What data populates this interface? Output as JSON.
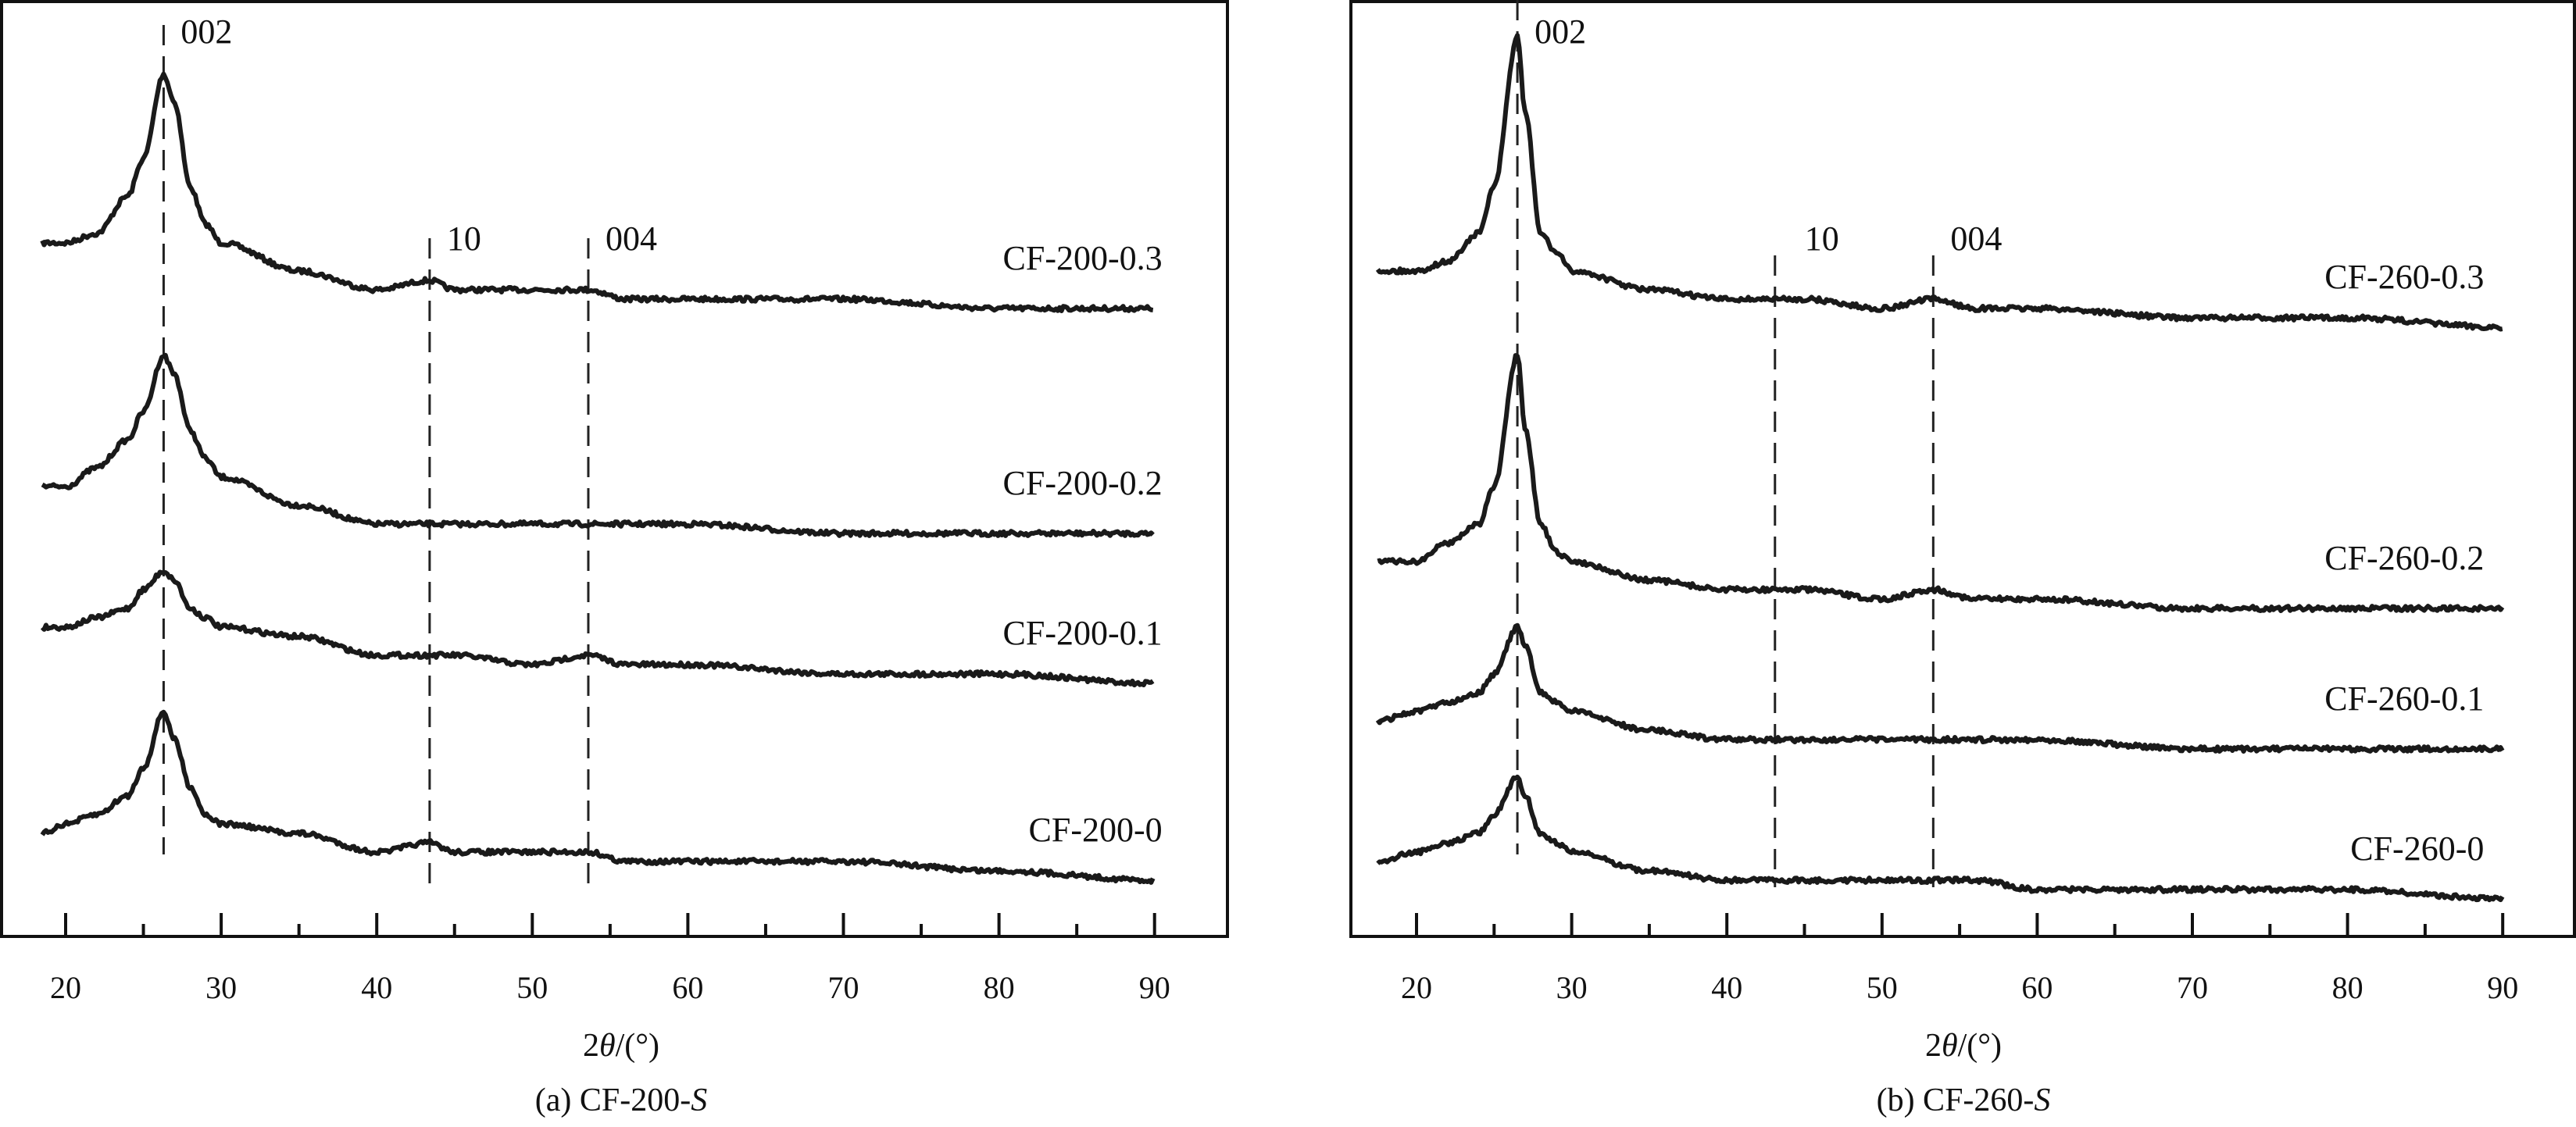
{
  "chart_data": [
    {
      "type": "line",
      "panel": "a",
      "caption_prefix": "(a) CF-200-",
      "caption_italic": "S",
      "xlabel_pre": "2",
      "xlabel_theta": "θ",
      "xlabel_post": "/(°)",
      "ylabel": "",
      "xlim": [
        18,
        90
      ],
      "ylim": [
        0,
        100
      ],
      "y_units": "a.u. (offset stacked)",
      "xticks": [
        "20",
        "30",
        "40",
        "50",
        "60",
        "70",
        "80",
        "90"
      ],
      "xtick_values": [
        20,
        30,
        40,
        50,
        60,
        70,
        80,
        90
      ],
      "annotations": [
        {
          "label": "002",
          "x": 26.3
        },
        {
          "label": "10",
          "x": 43.4
        },
        {
          "label": "004",
          "x": 53.6
        }
      ],
      "x": [
        18.5,
        20,
        22,
        24,
        25,
        26.3,
        27,
        28,
        29,
        30,
        35,
        40,
        43.4,
        45,
        50,
        53.6,
        56,
        60,
        70,
        80,
        90
      ],
      "series": [
        {
          "name": "CF-200-0.3",
          "values": [
            74,
            74,
            75,
            79,
            83,
            92,
            89,
            80,
            76,
            74,
            71,
            69,
            70,
            69,
            69,
            69,
            68,
            68,
            68,
            67,
            67
          ]
        },
        {
          "name": "CF-200-0.2",
          "values": [
            48,
            48,
            50,
            53,
            56,
            62,
            60,
            54,
            51,
            49,
            46,
            44,
            44,
            44,
            44,
            44,
            44,
            44,
            43,
            43,
            43
          ]
        },
        {
          "name": "CF-200-0.1",
          "values": [
            33,
            33,
            34,
            35,
            37,
            39,
            38,
            35,
            34,
            33,
            32,
            30,
            30,
            30,
            29,
            30,
            29,
            29,
            28,
            28,
            27
          ]
        },
        {
          "name": "CF-200-0",
          "values": [
            11,
            12,
            13,
            15,
            18,
            24,
            21,
            16,
            13,
            12,
            11,
            9,
            10,
            9,
            9,
            9,
            8,
            8,
            8,
            7,
            6
          ]
        }
      ],
      "grid": false
    },
    {
      "type": "line",
      "panel": "b",
      "caption_prefix": "(b) CF-260-",
      "caption_italic": "S",
      "xlabel_pre": "2",
      "xlabel_theta": "θ",
      "xlabel_post": "/(°)",
      "ylabel": "",
      "xlim": [
        17,
        90
      ],
      "ylim": [
        0,
        100
      ],
      "y_units": "a.u. (offset stacked)",
      "xticks": [
        "20",
        "30",
        "40",
        "50",
        "60",
        "70",
        "80",
        "90"
      ],
      "xtick_values": [
        20,
        30,
        40,
        50,
        60,
        70,
        80,
        90
      ],
      "annotations": [
        {
          "label": "002",
          "x": 26.5
        },
        {
          "label": "10",
          "x": 43.1
        },
        {
          "label": "004",
          "x": 53.3
        }
      ],
      "x": [
        17.5,
        20,
        22,
        24,
        25,
        26.5,
        27,
        28,
        29,
        30,
        35,
        40,
        43.1,
        45,
        50,
        53.3,
        56,
        60,
        70,
        80,
        90
      ],
      "series": [
        {
          "name": "CF-260-0.3",
          "values": [
            71,
            71,
            72,
            75,
            80,
            96,
            88,
            75,
            73,
            71,
            69,
            68,
            68,
            68,
            67,
            68,
            67,
            67,
            66,
            66,
            65
          ]
        },
        {
          "name": "CF-260-0.2",
          "values": [
            40,
            40,
            42,
            44,
            48,
            62,
            54,
            44,
            41,
            40,
            38,
            37,
            37,
            37,
            36,
            37,
            36,
            36,
            35,
            35,
            35
          ]
        },
        {
          "name": "CF-260-0.1",
          "values": [
            23,
            24,
            25,
            26,
            28,
            33,
            31,
            26,
            25,
            24,
            22,
            21,
            21,
            21,
            21,
            21,
            21,
            21,
            20,
            20,
            20
          ]
        },
        {
          "name": "CF-260-0",
          "values": [
            8,
            9,
            10,
            11,
            13,
            17,
            15,
            11,
            10,
            9,
            7,
            6,
            6,
            6,
            6,
            6,
            6,
            5,
            5,
            5,
            4
          ]
        }
      ],
      "grid": false
    }
  ]
}
